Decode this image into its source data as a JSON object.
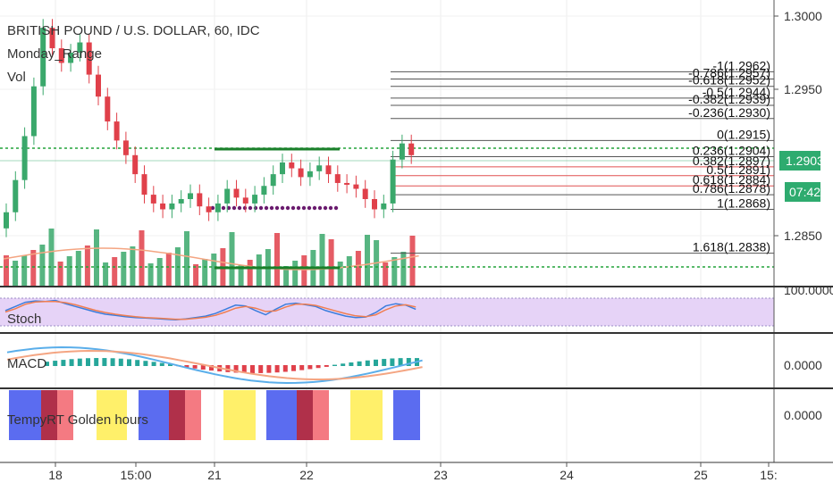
{
  "legend": {
    "symbol": "BRITISH POUND / U.S. DOLLAR, 60, IDC",
    "indicator1": "Monday_Range",
    "indicator2": "Vol",
    "stoch": "Stoch",
    "macd": "MACD",
    "golden": "TempyRT Golden hours"
  },
  "price_tag": {
    "value": "1.2903",
    "countdown": "07:42",
    "color": "#2eab6f"
  },
  "colors": {
    "up": "#3aa86b",
    "down": "#e0404a",
    "stoch_bg": "#e6d3f7",
    "blue": "#5b6cf0",
    "red": "#f47a82",
    "maroon": "#b0304a",
    "yellow": "#fff06a"
  },
  "chart_data": [
    {
      "type": "candlestick",
      "title": "BRITISH POUND / U.S. DOLLAR, 60, IDC",
      "ylim": [
        1.2822,
        1.301
      ],
      "y_ticks": [
        "1.3000",
        "1.2950",
        "1.2850"
      ],
      "y_tick_values": [
        1.3,
        1.295,
        1.285
      ],
      "x_ticks": [
        "18",
        "15:00",
        "21",
        "22",
        "23",
        "24",
        "25",
        "15:"
      ],
      "fib_labels": [
        {
          "label": "-1(1.2962)",
          "value": 1.2962
        },
        {
          "label": "-0.786(1.2957)",
          "value": 1.2957
        },
        {
          "label": "-0.618(1.2952)",
          "value": 1.2952
        },
        {
          "label": "-0.5(1.2944)",
          "value": 1.2944
        },
        {
          "label": "-0.382(1.2939)",
          "value": 1.2939
        },
        {
          "label": "-0.236(1.2930)",
          "value": 1.293
        },
        {
          "label": "0(1.2915)",
          "value": 1.2915
        },
        {
          "label": "0.236(1.2904)",
          "value": 1.2904
        },
        {
          "label": "0.382(1.2897)",
          "value": 1.2897
        },
        {
          "label": "0.5(1.2891)",
          "value": 1.2891
        },
        {
          "label": "0.618(1.2884)",
          "value": 1.2884
        },
        {
          "label": "0.786(1.2878)",
          "value": 1.2878
        },
        {
          "label": "1(1.2868)",
          "value": 1.2868
        },
        {
          "label": "1.618(1.2838)",
          "value": 1.2838
        }
      ],
      "current_price": 1.2903,
      "closes": [
        1.2866,
        1.2888,
        1.2918,
        1.2952,
        1.2992,
        1.2978,
        1.2968,
        1.2975,
        1.2982,
        1.296,
        1.2945,
        1.2928,
        1.2915,
        1.2905,
        1.2892,
        1.2878,
        1.2872,
        1.2868,
        1.2872,
        1.2875,
        1.2879,
        1.287,
        1.2866,
        1.2872,
        1.2882,
        1.2876,
        1.2872,
        1.2878,
        1.2884,
        1.2892,
        1.29,
        1.2896,
        1.289,
        1.2894,
        1.2898,
        1.2892,
        1.2886,
        1.2885,
        1.2882,
        1.2875,
        1.2868,
        1.2872,
        1.2902,
        1.2913,
        1.2905
      ]
    },
    {
      "type": "line",
      "title": "Stoch",
      "y_ticks": [
        "100.0000"
      ],
      "k": [
        55,
        70,
        85,
        90,
        88,
        92,
        80,
        70,
        60,
        50,
        42,
        38,
        33,
        30,
        28,
        26,
        24,
        22,
        25,
        30,
        35,
        45,
        60,
        75,
        72,
        55,
        40,
        60,
        78,
        82,
        76,
        70,
        55,
        45,
        35,
        30,
        32,
        48,
        72,
        80,
        75,
        60
      ],
      "d": [
        50,
        62,
        78,
        86,
        88,
        88,
        84,
        76,
        66,
        56,
        48,
        42,
        37,
        33,
        30,
        28,
        26,
        24,
        24,
        27,
        31,
        38,
        50,
        64,
        70,
        64,
        52,
        54,
        68,
        78,
        78,
        74,
        64,
        54,
        44,
        36,
        33,
        40,
        58,
        72,
        76,
        68
      ]
    },
    {
      "type": "bar",
      "title": "MACD",
      "y_ticks": [
        "0.0000"
      ]
    },
    {
      "type": "heatmap",
      "title": "TempyRT Golden hours",
      "y_ticks": [
        "0.0000"
      ]
    }
  ]
}
